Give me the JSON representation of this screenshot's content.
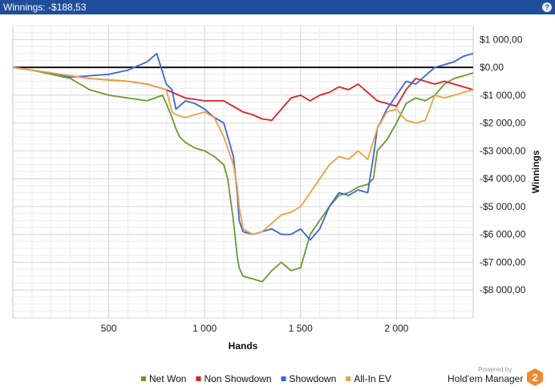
{
  "window": {
    "title": "Winnings: -$188,53"
  },
  "icons": {
    "help": "help-icon"
  },
  "brand": {
    "powered": "Powered by",
    "name": "Hold'em Manager"
  },
  "chart_data": {
    "type": "line",
    "xlabel": "Hands",
    "ylabel": "Winnings",
    "xlim": [
      0,
      2400
    ],
    "ylim": [
      -9000,
      1500
    ],
    "x_ticks": [
      500,
      1000,
      1500,
      2000
    ],
    "x_tick_labels": [
      "500",
      "1 000",
      "1 500",
      "2 000"
    ],
    "y_ticks": [
      1000,
      0,
      -1000,
      -2000,
      -3000,
      -4000,
      -5000,
      -6000,
      -7000,
      -8000
    ],
    "y_tick_labels": [
      "$1 000,00",
      "$0,00",
      "-$1 000,00",
      "-$2 000,00",
      "-$3 000,00",
      "-$4 000,00",
      "-$5 000,00",
      "-$6 000,00",
      "-$7 000,00",
      "-$8 000,00"
    ],
    "legend_position": "bottom",
    "grid": true,
    "zero_line": true,
    "series": [
      {
        "name": "Net Won",
        "color": "#6a9a2e",
        "x": [
          0,
          100,
          200,
          300,
          350,
          400,
          500,
          600,
          700,
          780,
          800,
          830,
          850,
          870,
          900,
          950,
          1000,
          1050,
          1100,
          1120,
          1150,
          1170,
          1180,
          1200,
          1250,
          1300,
          1350,
          1400,
          1450,
          1500,
          1550,
          1600,
          1650,
          1700,
          1750,
          1800,
          1850,
          1880,
          1900,
          1950,
          2000,
          2050,
          2100,
          2150,
          2200,
          2250,
          2300,
          2350,
          2400
        ],
        "y": [
          0,
          -100,
          -250,
          -400,
          -600,
          -800,
          -1000,
          -1100,
          -1200,
          -1000,
          -1300,
          -1800,
          -2200,
          -2500,
          -2700,
          -2900,
          -3000,
          -3200,
          -3500,
          -4000,
          -5500,
          -6800,
          -7200,
          -7500,
          -7600,
          -7700,
          -7300,
          -7000,
          -7300,
          -7200,
          -6000,
          -5500,
          -5000,
          -4600,
          -4500,
          -4300,
          -4200,
          -4000,
          -3000,
          -2600,
          -2000,
          -1300,
          -1100,
          -1200,
          -1000,
          -600,
          -400,
          -300,
          -200
        ]
      },
      {
        "name": "Non Showdown",
        "color": "#e02020",
        "x": [
          0,
          100,
          200,
          300,
          400,
          500,
          600,
          700,
          800,
          900,
          1000,
          1100,
          1150,
          1200,
          1250,
          1300,
          1350,
          1400,
          1450,
          1500,
          1550,
          1600,
          1650,
          1700,
          1750,
          1800,
          1850,
          1900,
          1950,
          2000,
          2050,
          2100,
          2150,
          2200,
          2250,
          2300,
          2350,
          2400
        ],
        "y": [
          0,
          -100,
          -200,
          -300,
          -400,
          -450,
          -500,
          -600,
          -800,
          -1100,
          -1200,
          -1200,
          -1400,
          -1600,
          -1700,
          -1850,
          -1900,
          -1500,
          -1100,
          -1000,
          -1200,
          -1000,
          -900,
          -700,
          -800,
          -600,
          -900,
          -1200,
          -1300,
          -1400,
          -800,
          -400,
          -500,
          -600,
          -500,
          -600,
          -700,
          -800
        ]
      },
      {
        "name": "Showdown",
        "color": "#3a66e0",
        "x": [
          0,
          100,
          200,
          300,
          400,
          500,
          600,
          700,
          750,
          800,
          830,
          850,
          900,
          950,
          1000,
          1050,
          1100,
          1150,
          1170,
          1180,
          1200,
          1250,
          1300,
          1350,
          1400,
          1450,
          1500,
          1550,
          1600,
          1650,
          1700,
          1750,
          1800,
          1850,
          1880,
          1900,
          1950,
          2000,
          2050,
          2100,
          2150,
          2200,
          2250,
          2300,
          2350,
          2400
        ],
        "y": [
          0,
          -100,
          -200,
          -350,
          -300,
          -250,
          -100,
          200,
          500,
          -600,
          -800,
          -1500,
          -1200,
          -1300,
          -1500,
          -1800,
          -2000,
          -3200,
          -4500,
          -5500,
          -5900,
          -6000,
          -5900,
          -5800,
          -6000,
          -6000,
          -5800,
          -6200,
          -5800,
          -5000,
          -4500,
          -4600,
          -4400,
          -4500,
          -3200,
          -2200,
          -1500,
          -1000,
          -500,
          -600,
          -300,
          0,
          100,
          200,
          400,
          500
        ]
      },
      {
        "name": "All-In EV",
        "color": "#f0a040",
        "x": [
          0,
          100,
          200,
          300,
          400,
          500,
          600,
          700,
          800,
          830,
          850,
          900,
          950,
          1000,
          1050,
          1100,
          1150,
          1170,
          1180,
          1200,
          1250,
          1300,
          1350,
          1400,
          1450,
          1500,
          1550,
          1600,
          1650,
          1700,
          1750,
          1800,
          1850,
          1900,
          1950,
          2000,
          2050,
          2100,
          2150,
          2200,
          2250,
          2300,
          2350,
          2400
        ],
        "y": [
          0,
          -100,
          -200,
          -300,
          -400,
          -450,
          -500,
          -600,
          -800,
          -1600,
          -1700,
          -1800,
          -1700,
          -1600,
          -1800,
          -2500,
          -3500,
          -4300,
          -5000,
          -5800,
          -6000,
          -5900,
          -5600,
          -5300,
          -5200,
          -5000,
          -4500,
          -4000,
          -3500,
          -3200,
          -3300,
          -3000,
          -3300,
          -2200,
          -1600,
          -1500,
          -1900,
          -2000,
          -1900,
          -1000,
          -1100,
          -1000,
          -900,
          -800
        ]
      }
    ]
  }
}
